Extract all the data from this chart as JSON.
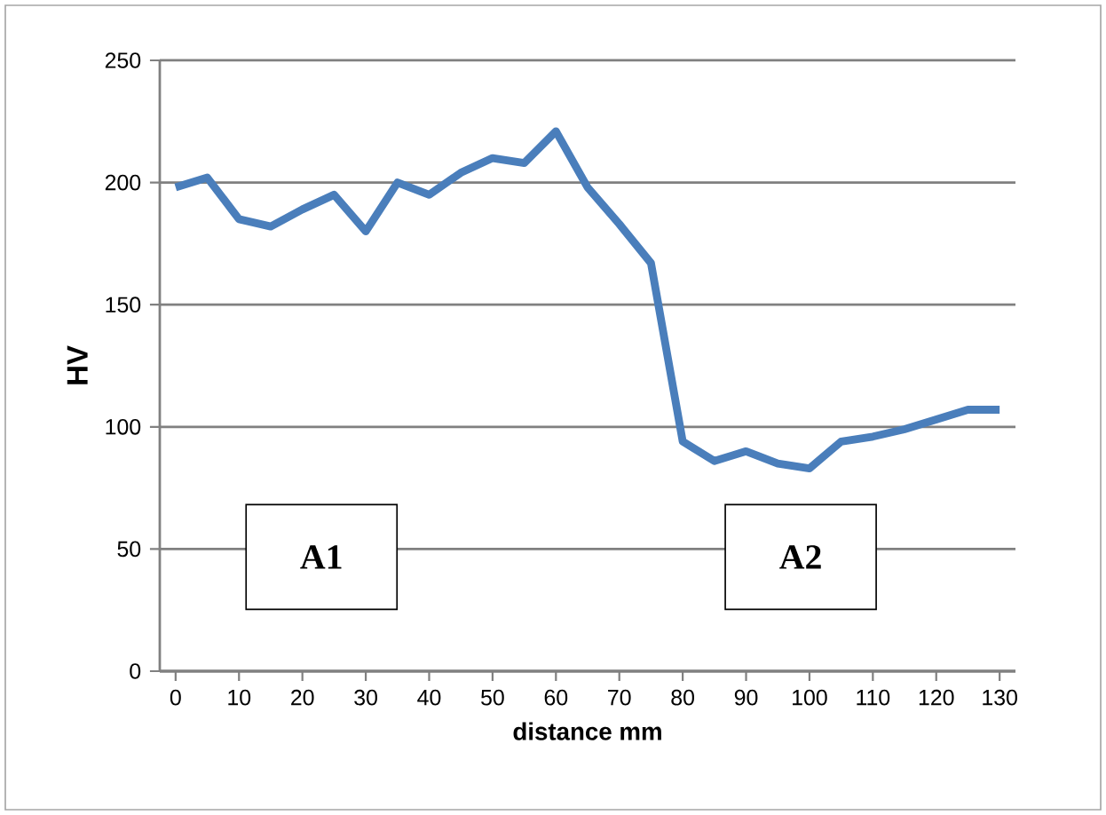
{
  "chart_data": {
    "type": "line",
    "xlabel": "distance  mm",
    "ylabel": "HV",
    "x": [
      0,
      5,
      10,
      15,
      20,
      25,
      30,
      35,
      40,
      45,
      50,
      55,
      60,
      65,
      70,
      75,
      80,
      85,
      90,
      95,
      100,
      105,
      110,
      115,
      120,
      125,
      130
    ],
    "series": [
      {
        "color": "#4a7ebb",
        "values": [
          198,
          202,
          185,
          182,
          189,
          195,
          180,
          200,
          195,
          204,
          210,
          208,
          221,
          198,
          183,
          167,
          94,
          86,
          90,
          85,
          83,
          94,
          96,
          99,
          103,
          107,
          107
        ]
      }
    ],
    "xlim": [
      -2.5,
      132.5
    ],
    "ylim": [
      0,
      250
    ],
    "xticks": [
      0,
      10,
      20,
      30,
      40,
      50,
      60,
      70,
      80,
      90,
      100,
      110,
      120,
      130
    ],
    "yticks": [
      0,
      50,
      100,
      150,
      200,
      250
    ],
    "grid": "y",
    "marker": "none",
    "line_style": "solid",
    "annotations": [
      "A1",
      "A2"
    ]
  }
}
